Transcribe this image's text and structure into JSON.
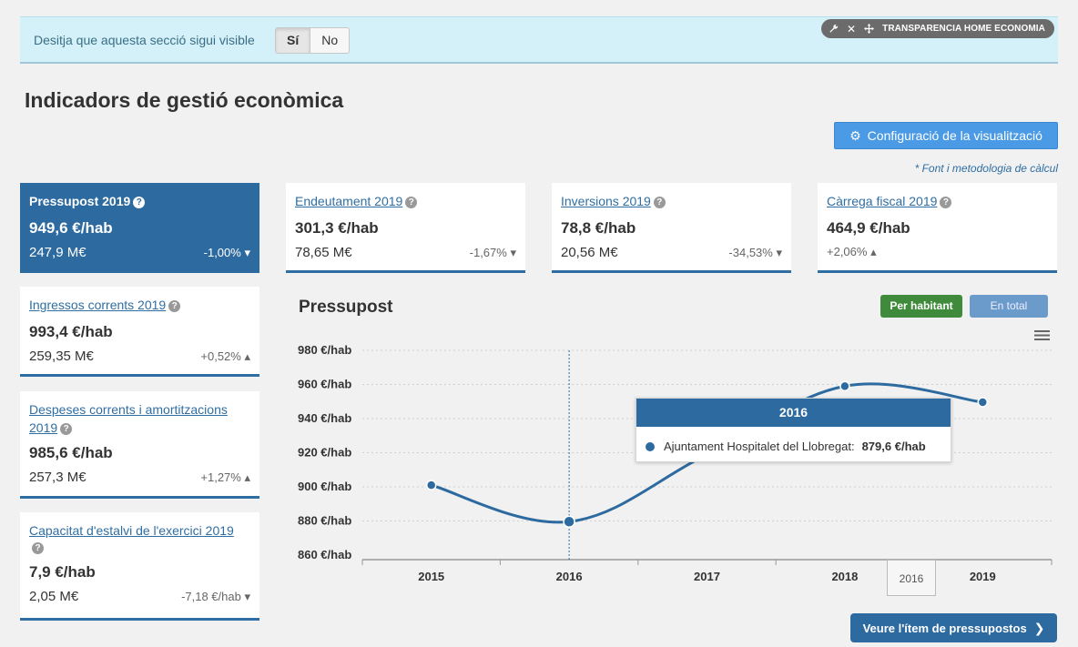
{
  "banner": {
    "question": "Desitja que aquesta secció sigui visible",
    "yes_label": "Sí",
    "no_label": "No",
    "section_tag": "TRANSPARENCIA HOME ECONOMIA",
    "icons": [
      "wrench-icon",
      "close-icon",
      "move-icon"
    ]
  },
  "page": {
    "title": "Indicadors de gestió econòmica",
    "config_button": "Configuració de la visualització",
    "method_link": "* Font i metodologia de càlcul"
  },
  "cards": {
    "pressupost": {
      "title": "Pressupost 2019",
      "main": "949,6 €/hab",
      "secondary": "247,9 M€",
      "variation": "-1,00%",
      "trend": "down"
    },
    "endeutament": {
      "title": "Endeutament 2019",
      "main": "301,3 €/hab",
      "secondary": "78,65 M€",
      "variation": "-1,67%",
      "trend": "down"
    },
    "inversions": {
      "title": "Inversions 2019",
      "main": "78,8 €/hab",
      "secondary": "20,56 M€",
      "variation": "-34,53%",
      "trend": "down"
    },
    "carrega": {
      "title": "Càrrega fiscal 2019",
      "main": "464,9 €/hab",
      "secondary": "",
      "variation": "+2,06%",
      "trend": "up"
    },
    "ingressos": {
      "title": "Ingressos corrents 2019",
      "main": "993,4 €/hab",
      "secondary": "259,35 M€",
      "variation": "+0,52%",
      "trend": "up"
    },
    "despeses": {
      "title": "Despeses corrents i amortitzacions 2019",
      "main": "985,6 €/hab",
      "secondary": "257,3 M€",
      "variation": "+1,27%",
      "trend": "up"
    },
    "capacitat": {
      "title": "Capacitat d'estalvi de l'exercici 2019",
      "main": "7,9 €/hab",
      "secondary": "2,05 M€",
      "variation": "-7,18 €/hab",
      "trend": "down"
    }
  },
  "chart_section": {
    "title": "Pressupost",
    "per_habitant_label": "Per habitant",
    "total_label": "En total",
    "item_button": "Veure l'ítem de pressupostos"
  },
  "chart_data": {
    "type": "line",
    "categories": [
      "2015",
      "2016",
      "2017",
      "2018",
      "2019"
    ],
    "series": [
      {
        "name": "Ajuntament Hospitalet del Llobregat",
        "values": [
          901,
          879.6,
          919,
          959,
          949.6
        ],
        "color": "#2d6aa0"
      }
    ],
    "y_ticks": [
      "860 €/hab",
      "880 €/hab",
      "900 €/hab",
      "920 €/hab",
      "940 €/hab",
      "960 €/hab",
      "980 €/hab"
    ],
    "ylim": [
      860,
      980
    ],
    "grid": "horizontal dashed",
    "tooltip": {
      "header": "2016",
      "series": "Ajuntament Hospitalet del Llobregat:",
      "value": "879,6 €/hab"
    },
    "navigator_label": "2016"
  }
}
